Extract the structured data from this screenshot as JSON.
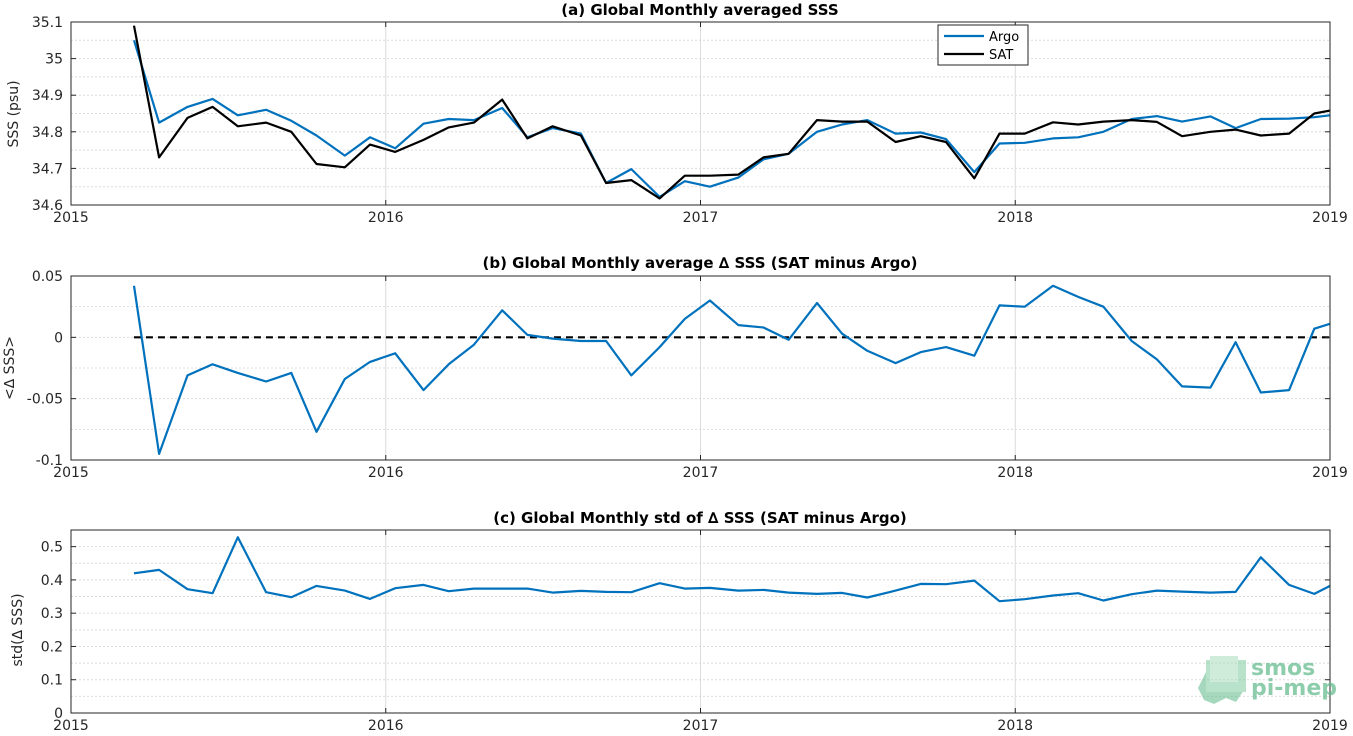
{
  "colors": {
    "argo": "#0072BD",
    "sat": "#000000",
    "grid": "#dcdcdc",
    "logo_green": "#5fb98a"
  },
  "logo": {
    "line1": "smos",
    "line2": "pi-mep",
    "icon": "smos-pimep-logo-icon"
  },
  "chart_data": [
    {
      "type": "line",
      "title": "(a) Global Monthly averaged SSS",
      "xlabel": "",
      "ylabel": "SSS (psu)",
      "xlim": [
        2015,
        2019
      ],
      "ylim": [
        34.6,
        35.1
      ],
      "xticks": [
        "2015",
        "2016",
        "2017",
        "2018",
        "2019"
      ],
      "yticks": [
        "34.6",
        "34.7",
        "34.8",
        "34.9",
        "35",
        "35.1"
      ],
      "grid": true,
      "legend": "top-center",
      "x": [
        2015.2,
        2015.28,
        2015.37,
        2015.45,
        2015.53,
        2015.62,
        2015.7,
        2015.78,
        2015.87,
        2015.95,
        2016.03,
        2016.12,
        2016.2,
        2016.28,
        2016.37,
        2016.45,
        2016.53,
        2016.62,
        2016.7,
        2016.78,
        2016.87,
        2016.95,
        2017.03,
        2017.12,
        2017.2,
        2017.28,
        2017.37,
        2017.45,
        2017.53,
        2017.62,
        2017.7,
        2017.78,
        2017.87,
        2017.95,
        2018.03,
        2018.12,
        2018.2,
        2018.28,
        2018.37,
        2018.45,
        2018.53,
        2018.62,
        2018.7,
        2018.78,
        2018.87,
        2018.95,
        2019.0
      ],
      "series": [
        {
          "name": "Argo",
          "color": "#0072BD",
          "values": [
            35.05,
            34.825,
            34.868,
            34.89,
            34.845,
            34.86,
            34.83,
            34.79,
            34.735,
            34.785,
            34.755,
            34.822,
            34.835,
            34.832,
            34.865,
            34.785,
            34.81,
            34.795,
            34.66,
            34.698,
            34.622,
            34.665,
            34.65,
            34.675,
            34.725,
            34.74,
            34.8,
            34.82,
            34.832,
            34.795,
            34.798,
            34.78,
            34.69,
            34.768,
            34.77,
            34.782,
            34.785,
            34.8,
            34.835,
            34.843,
            34.828,
            34.842,
            34.81,
            34.835,
            34.836,
            34.84,
            34.845
          ]
        },
        {
          "name": "SAT",
          "color": "#000000",
          "values": [
            35.09,
            34.73,
            34.838,
            34.868,
            34.815,
            34.825,
            34.8,
            34.712,
            34.703,
            34.765,
            34.745,
            34.778,
            34.812,
            34.825,
            34.888,
            34.782,
            34.815,
            34.79,
            34.66,
            34.668,
            34.618,
            34.68,
            34.68,
            34.683,
            34.73,
            34.74,
            34.832,
            34.828,
            34.828,
            34.772,
            34.788,
            34.772,
            34.673,
            34.795,
            34.795,
            34.826,
            34.82,
            34.828,
            34.832,
            34.827,
            34.788,
            34.8,
            34.806,
            34.79,
            34.795,
            34.85,
            34.858
          ]
        }
      ]
    },
    {
      "type": "line",
      "title": "(b) Global Monthly average ∆ SSS (SAT minus Argo)",
      "xlabel": "",
      "ylabel": "<∆ SSS>",
      "xlim": [
        2015,
        2019
      ],
      "ylim": [
        -0.1,
        0.05
      ],
      "xticks": [
        "2015",
        "2016",
        "2017",
        "2018",
        "2019"
      ],
      "yticks": [
        "-0.1",
        "-0.05",
        "0",
        "0.05"
      ],
      "grid": true,
      "zero_line": 0,
      "x": [
        2015.2,
        2015.28,
        2015.37,
        2015.45,
        2015.53,
        2015.62,
        2015.7,
        2015.78,
        2015.87,
        2015.95,
        2016.03,
        2016.12,
        2016.2,
        2016.28,
        2016.37,
        2016.45,
        2016.53,
        2016.62,
        2016.7,
        2016.78,
        2016.87,
        2016.95,
        2017.03,
        2017.12,
        2017.2,
        2017.28,
        2017.37,
        2017.45,
        2017.53,
        2017.62,
        2017.7,
        2017.78,
        2017.87,
        2017.95,
        2018.03,
        2018.12,
        2018.2,
        2018.28,
        2018.37,
        2018.45,
        2018.53,
        2018.62,
        2018.7,
        2018.78,
        2018.87,
        2018.95,
        2019.0
      ],
      "series": [
        {
          "name": "",
          "color": "#0072BD",
          "values": [
            0.042,
            -0.095,
            -0.031,
            -0.022,
            -0.029,
            -0.036,
            -0.029,
            -0.077,
            -0.034,
            -0.02,
            -0.013,
            -0.043,
            -0.022,
            -0.006,
            0.022,
            0.002,
            -0.001,
            -0.003,
            -0.003,
            -0.031,
            -0.008,
            0.015,
            0.03,
            0.01,
            0.008,
            -0.002,
            0.028,
            0.003,
            -0.011,
            -0.021,
            -0.012,
            -0.008,
            -0.015,
            0.026,
            0.025,
            0.042,
            0.033,
            0.025,
            -0.003,
            -0.018,
            -0.04,
            -0.041,
            -0.004,
            -0.045,
            -0.043,
            0.007,
            0.011
          ]
        }
      ]
    },
    {
      "type": "line",
      "title": "(c) Global Monthly std of ∆ SSS (SAT minus Argo)",
      "xlabel": "",
      "ylabel": "std(∆ SSS)",
      "xlim": [
        2015,
        2019
      ],
      "ylim": [
        0,
        0.55
      ],
      "xticks": [
        "2015",
        "2016",
        "2017",
        "2018",
        "2019"
      ],
      "yticks": [
        "0",
        "0.1",
        "0.2",
        "0.3",
        "0.4",
        "0.5"
      ],
      "grid": true,
      "x": [
        2015.2,
        2015.28,
        2015.37,
        2015.45,
        2015.53,
        2015.62,
        2015.7,
        2015.78,
        2015.87,
        2015.95,
        2016.03,
        2016.12,
        2016.2,
        2016.28,
        2016.37,
        2016.45,
        2016.53,
        2016.62,
        2016.7,
        2016.78,
        2016.87,
        2016.95,
        2017.03,
        2017.12,
        2017.2,
        2017.28,
        2017.37,
        2017.45,
        2017.53,
        2017.62,
        2017.7,
        2017.78,
        2017.87,
        2017.95,
        2018.03,
        2018.12,
        2018.2,
        2018.28,
        2018.37,
        2018.45,
        2018.53,
        2018.62,
        2018.7,
        2018.78,
        2018.87,
        2018.95,
        2019.0
      ],
      "series": [
        {
          "name": "",
          "color": "#0072BD",
          "values": [
            0.42,
            0.43,
            0.372,
            0.36,
            0.528,
            0.363,
            0.348,
            0.382,
            0.368,
            0.343,
            0.375,
            0.385,
            0.366,
            0.374,
            0.374,
            0.374,
            0.362,
            0.367,
            0.364,
            0.363,
            0.39,
            0.374,
            0.376,
            0.368,
            0.37,
            0.362,
            0.358,
            0.361,
            0.347,
            0.368,
            0.388,
            0.387,
            0.398,
            0.336,
            0.342,
            0.353,
            0.36,
            0.338,
            0.357,
            0.368,
            0.365,
            0.362,
            0.364,
            0.468,
            0.385,
            0.358,
            0.382
          ]
        }
      ]
    }
  ]
}
